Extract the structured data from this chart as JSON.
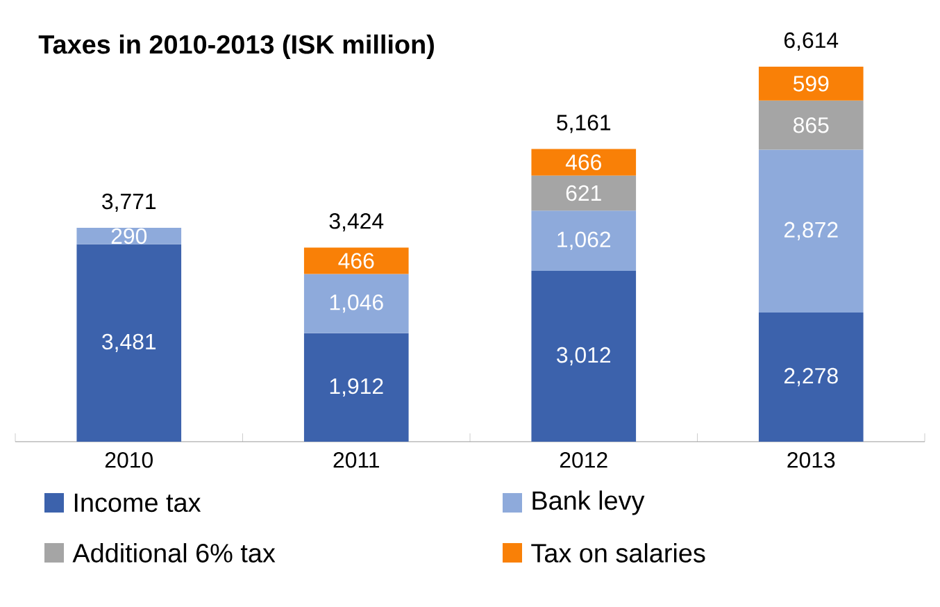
{
  "chart_data": {
    "type": "bar",
    "stacked": true,
    "title": "Taxes in 2010-2013 (ISK million)",
    "categories": [
      "2010",
      "2011",
      "2012",
      "2013"
    ],
    "legend": "bottom",
    "series": [
      {
        "name": "Income tax",
        "color": "#3c62ac",
        "values": [
          3481,
          1912,
          3012,
          2278
        ],
        "value_labels": [
          "3,481",
          "1,912",
          "3,012",
          "2,278"
        ]
      },
      {
        "name": "Bank levy",
        "color": "#8eaadb",
        "values": [
          290,
          1046,
          1062,
          2872
        ],
        "value_labels": [
          "290",
          "1,046",
          "1,062",
          "2,872"
        ]
      },
      {
        "name": "Additional 6% tax",
        "color": "#a5a5a5",
        "values": [
          null,
          null,
          621,
          865
        ],
        "value_labels": [
          null,
          null,
          "621",
          "865"
        ]
      },
      {
        "name": "Tax on salaries",
        "color": "#f98007",
        "values": [
          null,
          466,
          466,
          599
        ],
        "value_labels": [
          null,
          "466",
          "466",
          "599"
        ]
      }
    ],
    "totals": [
      "3,771",
      "3,424",
      "5,161",
      "6,614"
    ]
  }
}
